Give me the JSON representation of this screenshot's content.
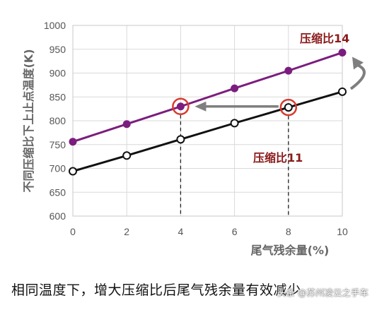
{
  "chart_data": {
    "type": "line",
    "ylabel": "不同压缩比下上止点温度(K)",
    "xlabel": "尾气残余量(%)",
    "xlim": [
      0,
      10
    ],
    "ylim": [
      600,
      1000
    ],
    "x_ticks": [
      "0",
      "2",
      "4",
      "6",
      "8",
      "10"
    ],
    "y_ticks": [
      "600",
      "650",
      "700",
      "750",
      "800",
      "850",
      "900",
      "950",
      "1000"
    ],
    "grid": true,
    "series": [
      {
        "name": "压缩比14",
        "color": "#7b1d7e",
        "marker": "filled",
        "x": [
          0,
          2,
          4,
          6,
          8,
          10
        ],
        "y": [
          756,
          793,
          830,
          868,
          905,
          943
        ]
      },
      {
        "name": "压缩比11",
        "color": "#111111",
        "marker": "open",
        "x": [
          0,
          2,
          4,
          6,
          8,
          10
        ],
        "y": [
          694,
          727,
          761,
          795,
          828,
          861
        ]
      }
    ],
    "label_color": "#8b1a1a",
    "highlight_color": "#d93a2f",
    "arrow_color": "#7f7f7f"
  },
  "caption": "相同温度下，增大压缩比后尾气残余量有效减少",
  "watermark": "头条 @苏州凌云之手车"
}
